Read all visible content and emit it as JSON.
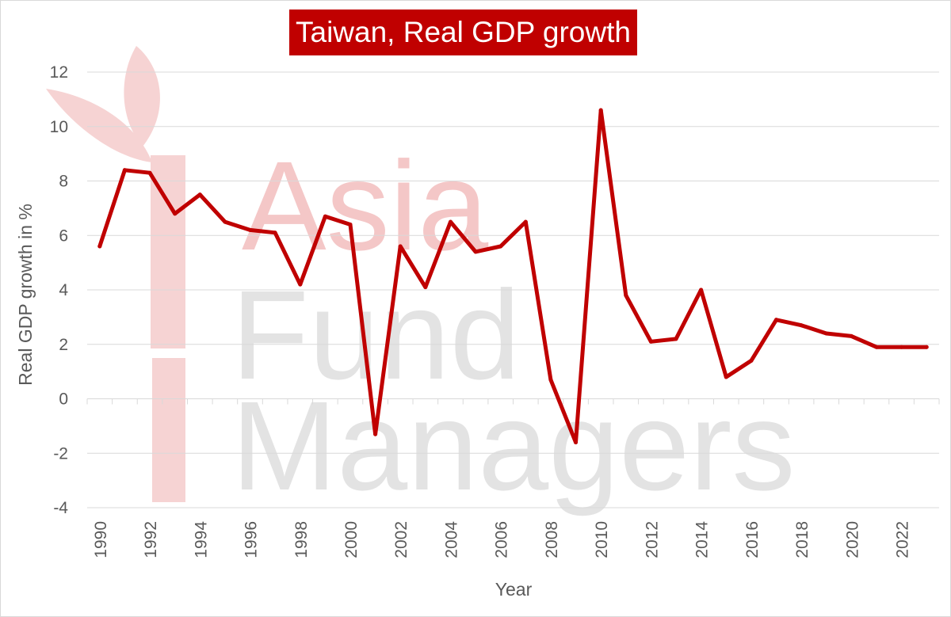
{
  "chart_data": {
    "type": "line",
    "title": "Taiwan, Real GDP growth",
    "xlabel": "Year",
    "ylabel": "Real GDP growth in %",
    "ylim": [
      -4,
      12
    ],
    "yticks": [
      "-4",
      "-2",
      "0",
      "2",
      "4",
      "6",
      "8",
      "10",
      "12"
    ],
    "xticks": [
      "1990",
      "1992",
      "1994",
      "1996",
      "1998",
      "2000",
      "2002",
      "2004",
      "2006",
      "2008",
      "2010",
      "2012",
      "2014",
      "2016",
      "2018",
      "2020",
      "2022"
    ],
    "grid": "horizontal",
    "legend": "none",
    "line_color": "#c00000",
    "series": [
      {
        "x": [
          1990,
          1991,
          1992,
          1993,
          1994,
          1995,
          1996,
          1997,
          1998,
          1999,
          2000,
          2001,
          2002,
          2003,
          2004,
          2005,
          2006,
          2007,
          2008,
          2009,
          2010,
          2011,
          2012,
          2013,
          2014,
          2015,
          2016,
          2017,
          2018,
          2019,
          2020,
          2021,
          2022,
          2023
        ],
        "values": [
          5.6,
          8.4,
          8.3,
          6.8,
          7.5,
          6.5,
          6.2,
          6.1,
          4.2,
          6.7,
          6.4,
          -1.3,
          5.6,
          4.1,
          6.5,
          5.4,
          5.6,
          6.5,
          0.7,
          -1.6,
          10.6,
          3.8,
          2.1,
          2.2,
          4.0,
          0.8,
          1.4,
          2.9,
          2.7,
          2.4,
          2.3,
          1.9,
          1.9,
          1.9
        ]
      }
    ]
  },
  "watermark": {
    "line1": "Asia",
    "line2": "Fund",
    "line3": "Managers",
    "color_primary": "#f4c7c7",
    "color_secondary": "#e3e3e3"
  }
}
